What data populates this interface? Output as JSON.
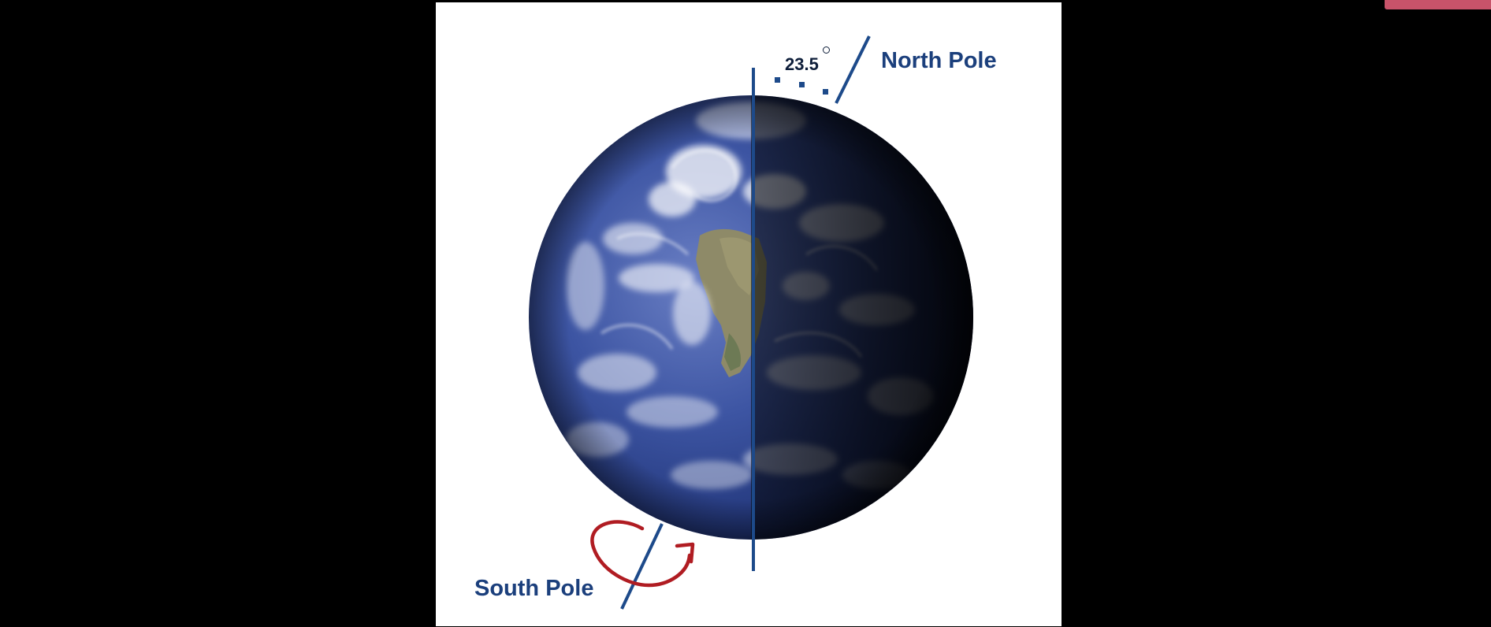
{
  "diagram": {
    "angle_label": "23.5",
    "north_pole_label": "North Pole",
    "south_pole_label": "South Pole"
  },
  "colors": {
    "page_background": "#000000",
    "panel_background": "#ffffff",
    "label_color": "#1b3f7c",
    "axis_color": "#1d4a8a",
    "rotation_arrow": "#b01c22",
    "accent_tab": "#c8536a"
  },
  "icons": {
    "rotation": "curved-rotation-arrow-icon"
  }
}
